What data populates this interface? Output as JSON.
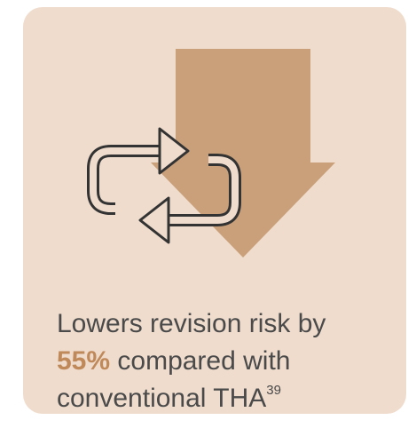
{
  "card": {
    "text_before": "Lowers revision risk by",
    "highlight": "55%",
    "text_after": "compared with conventional THA",
    "footnote": "39"
  }
}
